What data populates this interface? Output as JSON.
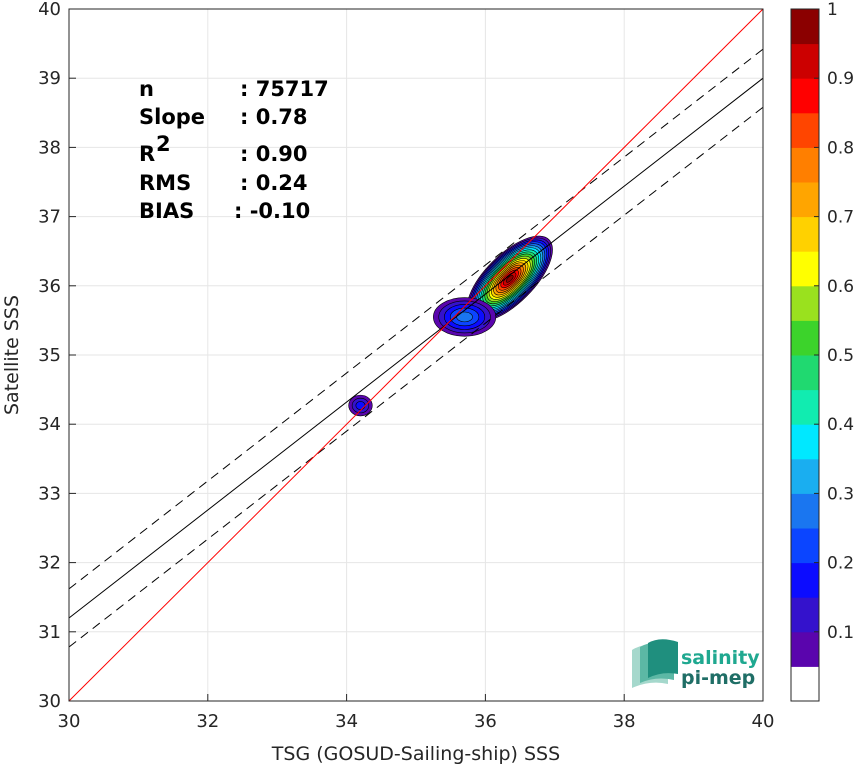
{
  "chart_data": {
    "type": "heatmap",
    "xlabel": "TSG (GOSUD-Sailing-ship) SSS",
    "ylabel": "Satellite SSS",
    "xlim": [
      30,
      40
    ],
    "ylim": [
      30,
      40
    ],
    "x_ticks": [
      "30",
      "32",
      "34",
      "36",
      "38",
      "40"
    ],
    "y_ticks": [
      "30",
      "31",
      "32",
      "33",
      "34",
      "35",
      "36",
      "37",
      "38",
      "39",
      "40"
    ],
    "grid": true,
    "stats": [
      {
        "key": "n",
        "sup": "",
        "value": ": 75717"
      },
      {
        "key": "Slope",
        "sup": "",
        "value": ": 0.78"
      },
      {
        "key": "R",
        "sup": "2",
        "value": ": 0.90"
      },
      {
        "key": "RMS",
        "sup": "",
        "value": ": 0.24"
      },
      {
        "key": "BIAS",
        "sup": "",
        "value": ": -0.10"
      }
    ],
    "identity_line": {
      "slope": 1,
      "intercept": 0,
      "color": "#ff0000"
    },
    "regression_line": {
      "slope": 0.78,
      "intercept": 7.8,
      "color": "#000000"
    },
    "regression_band_offset": 0.42,
    "density_clusters": [
      {
        "cx": 36.35,
        "cy": 36.1,
        "rx": 0.8,
        "ry": 0.35,
        "angle_deg": 45,
        "peak": 1.0
      },
      {
        "cx": 35.7,
        "cy": 35.55,
        "rx": 0.45,
        "ry": 0.28,
        "angle_deg": 0,
        "peak": 0.22
      },
      {
        "cx": 34.2,
        "cy": 34.27,
        "rx": 0.17,
        "ry": 0.15,
        "angle_deg": 0,
        "peak": 0.12
      }
    ],
    "colorbar": {
      "range": [
        0,
        1
      ],
      "ticks": [
        "0.1",
        "0.2",
        "0.3",
        "0.4",
        "0.5",
        "0.6",
        "0.7",
        "0.8",
        "0.9",
        "1"
      ],
      "colors": [
        "#ffffff",
        "#5a05ad",
        "#3412cc",
        "#0c0cff",
        "#0b45ff",
        "#1a76f0",
        "#1aaef0",
        "#00e8ff",
        "#11ecb0",
        "#20d970",
        "#3cd32b",
        "#9ae11e",
        "#ffff00",
        "#ffd100",
        "#ffa500",
        "#ff7f00",
        "#ff4500",
        "#ff0000",
        "#cc0000",
        "#8b0000"
      ]
    },
    "logo": {
      "line1": "salinity",
      "line2": "pi-mep"
    }
  }
}
